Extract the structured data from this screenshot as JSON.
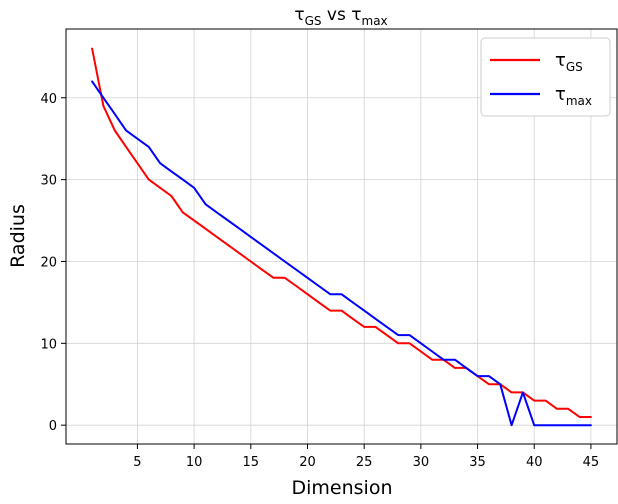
{
  "chart_data": {
    "type": "line",
    "title": {
      "base": "τ",
      "sub1": "GS",
      "middle": " vs ",
      "base2": "τ",
      "sub2": "max"
    },
    "xlabel": "Dimension",
    "ylabel": "Radius",
    "xlim": [
      -1.3,
      47.3
    ],
    "ylim": [
      -2.3,
      48.4
    ],
    "xticks": [
      5,
      10,
      15,
      20,
      25,
      30,
      35,
      40,
      45
    ],
    "yticks": [
      0,
      10,
      20,
      30,
      40
    ],
    "grid": true,
    "legend_position": "top-right",
    "series": [
      {
        "name_base": "τ",
        "name_sub": "GS",
        "color": "#ff0000",
        "x": [
          1,
          2,
          3,
          4,
          5,
          6,
          7,
          8,
          9,
          10,
          11,
          12,
          13,
          14,
          15,
          16,
          17,
          18,
          19,
          20,
          21,
          22,
          23,
          24,
          25,
          26,
          27,
          28,
          29,
          30,
          31,
          32,
          33,
          34,
          35,
          36,
          37,
          38,
          39,
          40,
          41,
          42,
          43,
          44,
          45
        ],
        "y": [
          46,
          39,
          36,
          34,
          32,
          30,
          29,
          28,
          26,
          25,
          24,
          23,
          22,
          21,
          20,
          19,
          18,
          18,
          17,
          16,
          15,
          14,
          14,
          13,
          12,
          12,
          11,
          10,
          10,
          9,
          8,
          8,
          7,
          7,
          6,
          5,
          5,
          4,
          4,
          3,
          3,
          2,
          2,
          1,
          1
        ]
      },
      {
        "name_base": "τ",
        "name_sub": "max",
        "color": "#0000ff",
        "x": [
          1,
          2,
          3,
          4,
          5,
          6,
          7,
          8,
          9,
          10,
          11,
          12,
          13,
          14,
          15,
          16,
          17,
          18,
          19,
          20,
          21,
          22,
          23,
          24,
          25,
          26,
          27,
          28,
          29,
          30,
          31,
          32,
          33,
          34,
          35,
          36,
          37,
          38,
          39,
          40,
          41,
          42,
          43,
          44,
          45
        ],
        "y": [
          42,
          40,
          38,
          36,
          35,
          34,
          32,
          31,
          30,
          29,
          27,
          26,
          25,
          24,
          23,
          22,
          21,
          20,
          19,
          18,
          17,
          16,
          16,
          15,
          14,
          13,
          12,
          11,
          11,
          10,
          9,
          8,
          8,
          7,
          6,
          6,
          5,
          0,
          4,
          0,
          0,
          0,
          0,
          0,
          0
        ]
      }
    ]
  }
}
